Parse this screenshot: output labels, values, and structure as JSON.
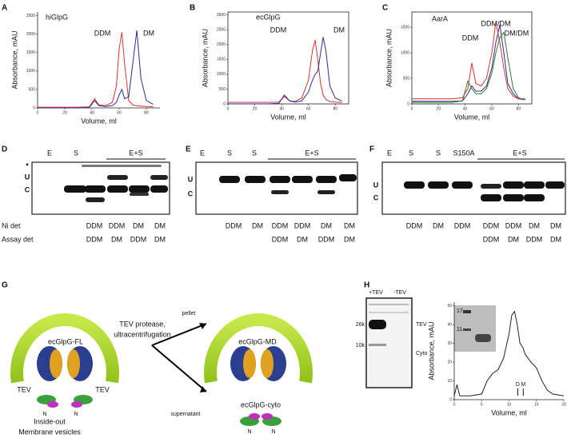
{
  "chart_data": [
    {
      "type": "line",
      "panel": "A",
      "title": "hiGlpG",
      "x_label": "Volume, ml",
      "y_label": "Absorbance, mAU",
      "x": [
        0,
        10,
        20,
        30,
        38,
        42,
        45,
        50,
        55,
        58,
        60,
        62,
        64,
        67,
        70,
        73,
        76,
        80,
        85
      ],
      "series": [
        {
          "name": "DDM",
          "color": "#e0312c",
          "values": [
            20,
            20,
            20,
            20,
            30,
            250,
            80,
            60,
            150,
            600,
            1600,
            2050,
            1200,
            200,
            80,
            60,
            50,
            40,
            30
          ]
        },
        {
          "name": "DM",
          "color": "#2c2c96",
          "values": [
            0,
            0,
            0,
            0,
            10,
            200,
            60,
            40,
            60,
            150,
            350,
            500,
            250,
            300,
            1200,
            2100,
            800,
            200,
            100
          ]
        }
      ],
      "xlim": [
        0,
        90
      ],
      "xticks": [
        0,
        20,
        40,
        60,
        80
      ],
      "ylim": [
        0,
        2600
      ],
      "yticks": [
        0,
        500,
        1000,
        1500,
        2000,
        2500
      ]
    },
    {
      "type": "line",
      "panel": "B",
      "title": "ecGlpG",
      "x_label": "Volume, ml",
      "y_label": "Absorbance, mAU",
      "x": [
        0,
        10,
        20,
        30,
        38,
        42,
        46,
        50,
        55,
        60,
        63,
        65,
        67,
        69,
        71,
        73,
        76,
        80,
        85
      ],
      "series": [
        {
          "name": "DDM",
          "color": "#e0312c",
          "values": [
            50,
            50,
            50,
            50,
            60,
            250,
            100,
            80,
            200,
            800,
            1800,
            2150,
            1500,
            700,
            300,
            150,
            80,
            60,
            50
          ]
        },
        {
          "name": "DM",
          "color": "#2c2c96",
          "values": [
            0,
            0,
            0,
            0,
            20,
            300,
            100,
            60,
            100,
            400,
            800,
            1000,
            1100,
            1700,
            2250,
            1800,
            600,
            200,
            100
          ]
        }
      ],
      "xlim": [
        0,
        90
      ],
      "xticks": [
        0,
        20,
        40,
        60,
        80
      ],
      "ylim": [
        0,
        3100
      ],
      "yticks": [
        0,
        500,
        1000,
        1500,
        2000,
        2500,
        3000
      ]
    },
    {
      "type": "line",
      "panel": "C",
      "title": "AarA",
      "x_label": "Volume, ml",
      "y_label": "Absorbance, mAU",
      "x": [
        0,
        10,
        20,
        30,
        38,
        42,
        45,
        48,
        52,
        56,
        60,
        63,
        66,
        69,
        72,
        76,
        80,
        85
      ],
      "series": [
        {
          "name": "DDM/DM",
          "color": "#2c2c96",
          "values": [
            50,
            50,
            50,
            50,
            60,
            200,
            350,
            250,
            250,
            350,
            700,
            1200,
            1550,
            1000,
            400,
            200,
            100,
            80
          ]
        },
        {
          "name": "DDM",
          "color": "#e0312c",
          "values": [
            100,
            100,
            100,
            100,
            120,
            300,
            800,
            400,
            350,
            500,
            1000,
            1600,
            1200,
            700,
            300,
            150,
            100,
            100
          ]
        },
        {
          "name": "DM/DM",
          "color": "#2e7d32",
          "values": [
            30,
            30,
            30,
            30,
            60,
            450,
            300,
            200,
            200,
            300,
            600,
            1000,
            1300,
            1400,
            900,
            300,
            120,
            80
          ]
        }
      ],
      "xlim": [
        0,
        90
      ],
      "xticks": [
        0,
        20,
        40,
        60,
        80
      ],
      "ylim": [
        0,
        1800
      ],
      "yticks": [
        0,
        500,
        1000,
        1500
      ]
    },
    {
      "type": "line",
      "x_label": "Volume, ml",
      "y_label": "Absorbance, mAU",
      "x": [
        0,
        0.5,
        1,
        3,
        5,
        6,
        7,
        8,
        9,
        10,
        10.5,
        11,
        11.5,
        12,
        12.5,
        13,
        14,
        15,
        16,
        17,
        18,
        20
      ],
      "values": [
        2,
        8,
        2,
        2,
        3,
        10,
        14,
        16,
        22,
        35,
        45,
        47,
        40,
        30,
        28,
        24,
        20,
        17,
        10,
        5,
        3,
        2
      ],
      "color": "#222222",
      "xlim": [
        0,
        20
      ],
      "xticks": [
        0,
        5,
        10,
        15,
        20
      ],
      "ylim": [
        0,
        52
      ],
      "yticks": [
        0,
        10,
        20,
        30,
        40,
        50
      ],
      "annotations": [
        {
          "text": "D",
          "x": 11.6
        },
        {
          "text": "M",
          "x": 12.6
        }
      ]
    }
  ],
  "row_labels": [
    "Ni det",
    "Assay det"
  ],
  "gels": {
    "D": {
      "panel": "D",
      "lanes": [
        "E",
        "S",
        "E+S"
      ],
      "bands": [
        "*",
        "U",
        "C"
      ],
      "ni_det": [
        "DDM",
        "DDM",
        "DM",
        "DM"
      ],
      "assay_det": [
        "DDM",
        "DM",
        "DDM",
        "DM"
      ]
    },
    "E": {
      "panel": "E",
      "lanes": [
        "E",
        "S",
        "S",
        "E+S"
      ],
      "bands": [
        "U",
        "C"
      ],
      "ni_det": [
        "DDM",
        "DM",
        "DDM",
        "DDM",
        "DM",
        "DM"
      ],
      "assay_det": [
        "DDM",
        "DM",
        "DDM",
        "DM"
      ]
    },
    "F": {
      "panel": "F",
      "lanes": [
        "E",
        "S",
        "S",
        "S150A",
        "E+S"
      ],
      "bands": [
        "U",
        "C"
      ],
      "ni_det": [
        "DDM",
        "DM",
        "DDM",
        "DDM",
        "DDM",
        "DM",
        "DM"
      ],
      "assay_det": [
        "DDM",
        "DM",
        "DDM",
        "DM"
      ]
    }
  },
  "diagram": {
    "panel": "G",
    "full_length": "ecGlpG-FL",
    "tev_sites": [
      "TEV",
      "TEV"
    ],
    "vesicles": [
      "Inside-out",
      "Membrane vesicles"
    ],
    "step": [
      "TEV protease,",
      "ultracentrifugation"
    ],
    "pellet": "pellet",
    "supernatant": "supernatant",
    "membrane_domain": "ecGlpG-MD",
    "cytoplasmic_domain": "ecGlpG-cyto",
    "n_labels": [
      "N",
      "N",
      "N",
      "N"
    ]
  },
  "gel_h": {
    "panel": "H",
    "lanes": [
      "+TEV",
      "-TEV"
    ],
    "markers": [
      "26k",
      "10k"
    ],
    "bands": [
      "TEV",
      "Cyto"
    ],
    "inset_markers": [
      "17",
      "11"
    ]
  }
}
